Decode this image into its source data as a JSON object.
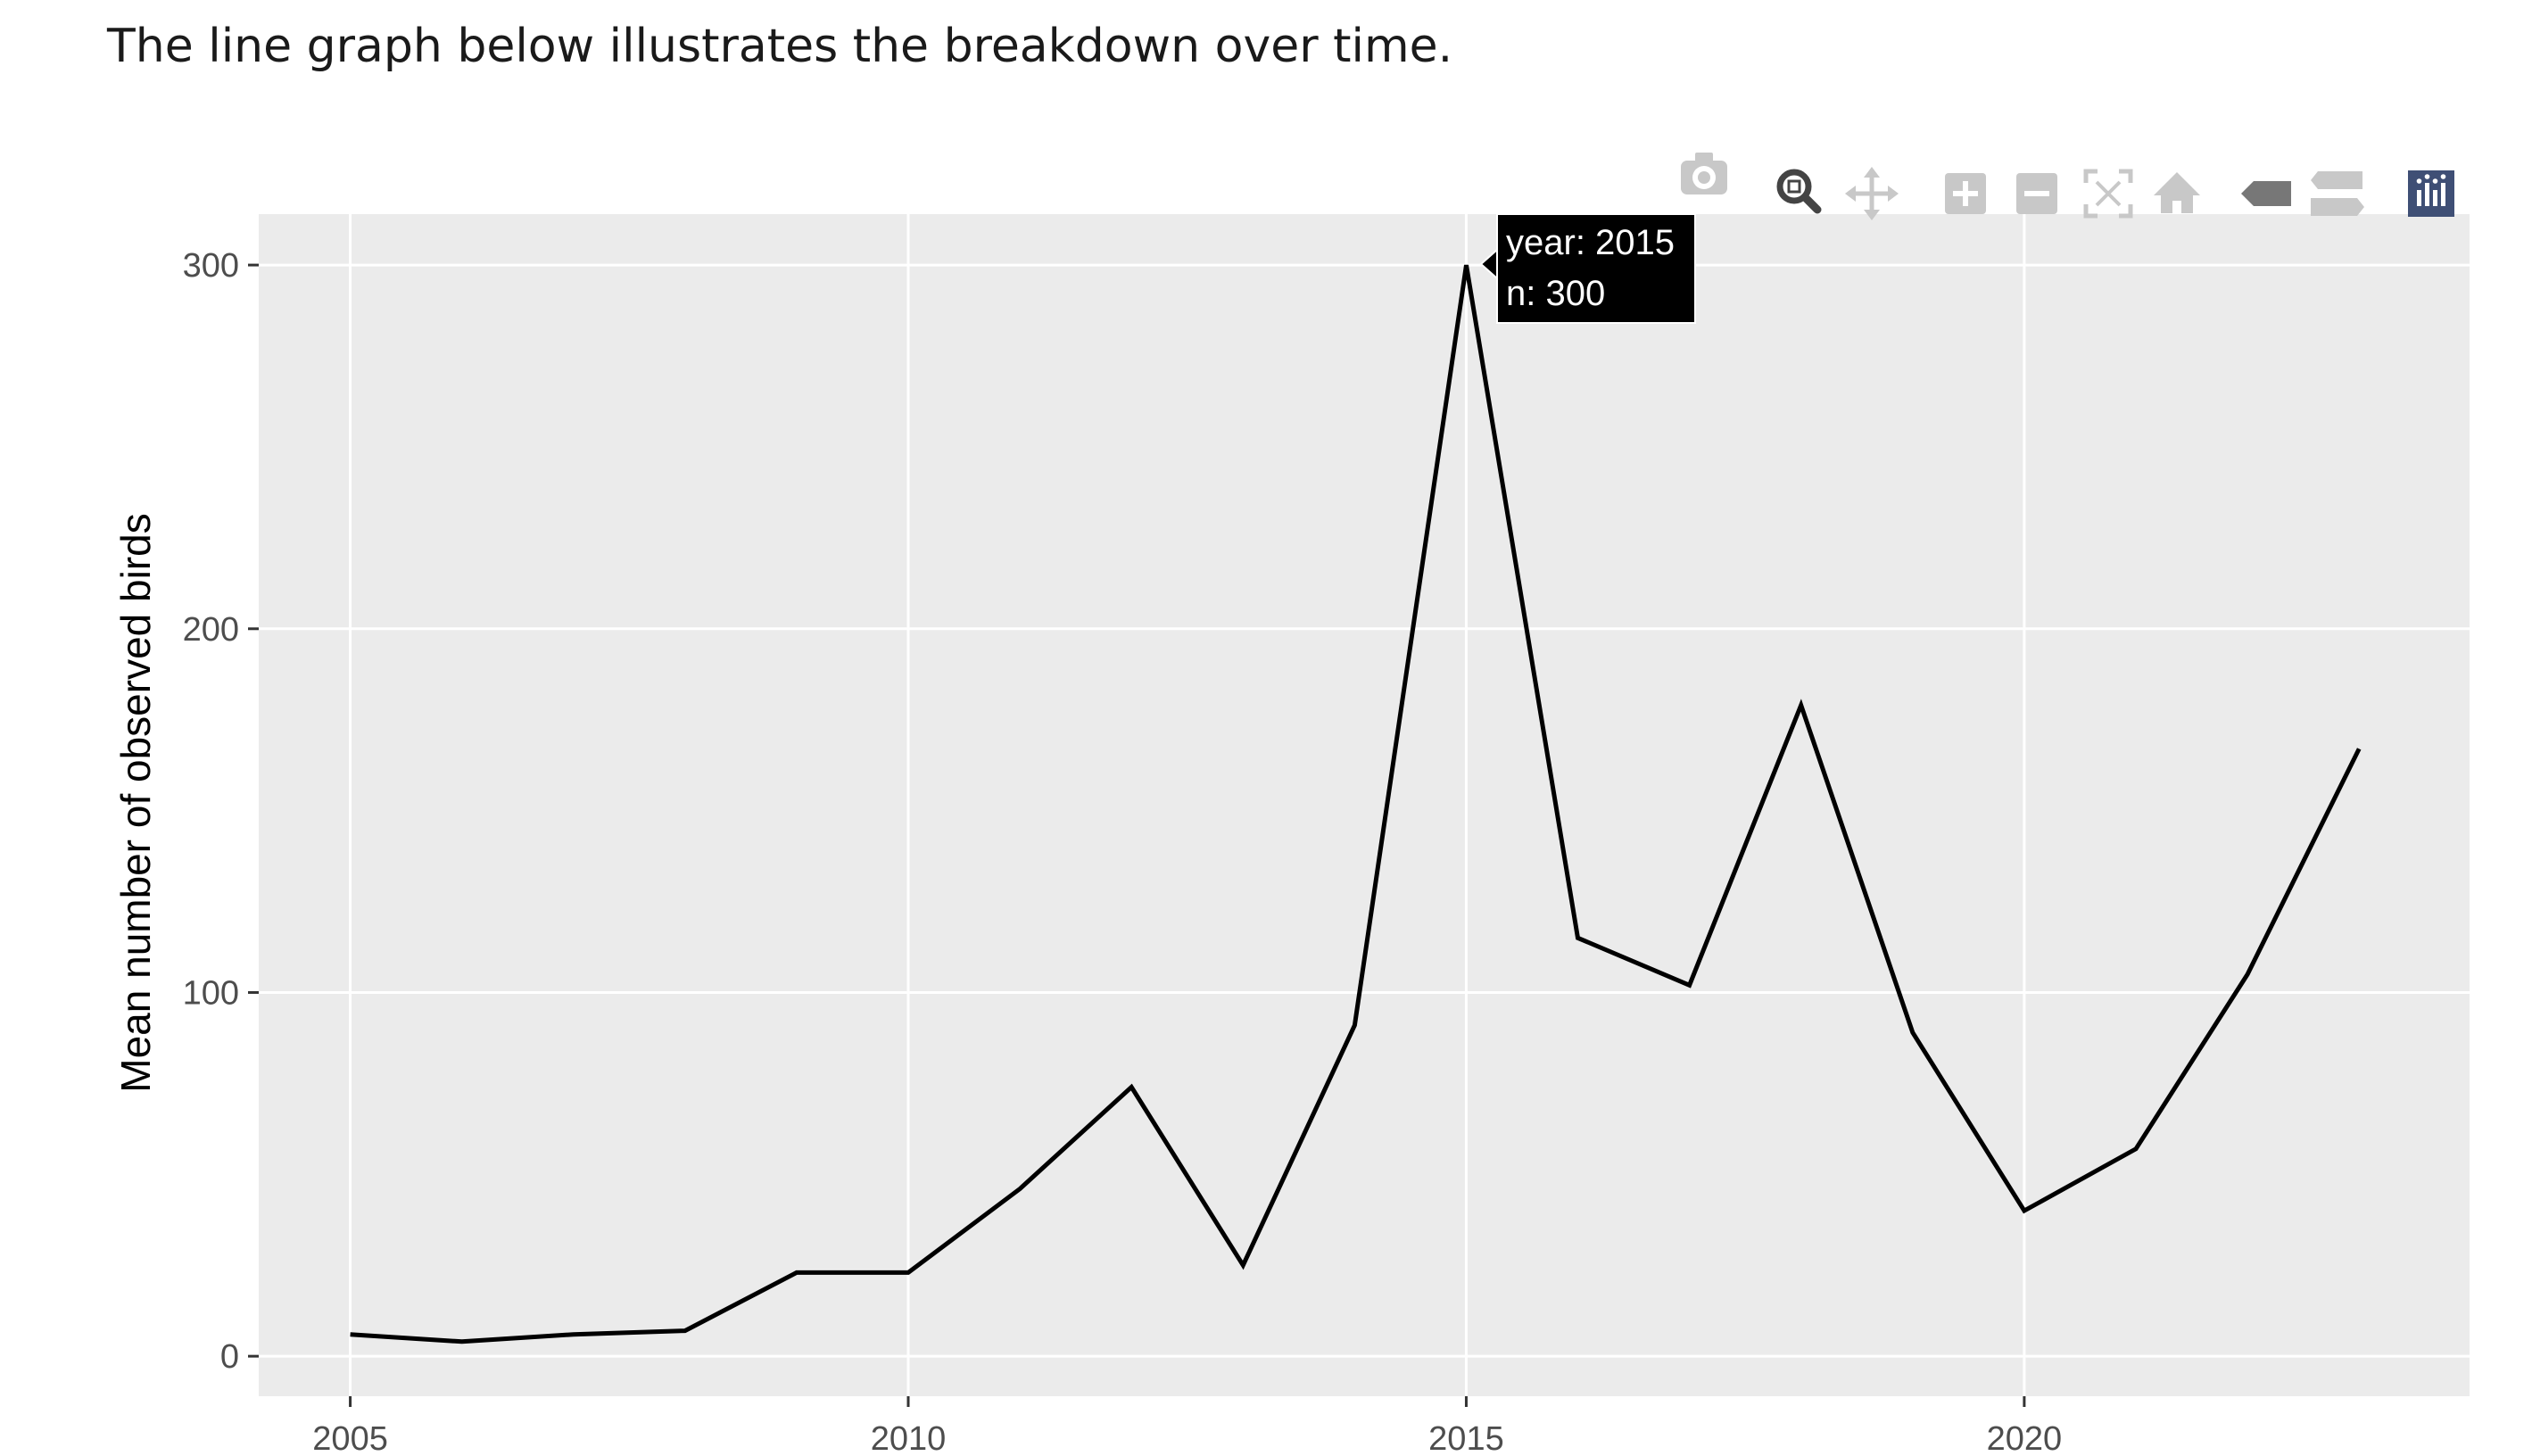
{
  "intro_text": "The line graph below illustrates the breakdown over time.",
  "tooltip": {
    "year_line": "year: 2015",
    "n_line": "n: 300",
    "year": 2015,
    "n": 300
  },
  "modebar": [
    {
      "icon": "camera-icon",
      "title": "Download plot as a png"
    },
    {
      "icon": "zoom-icon",
      "title": "Zoom"
    },
    {
      "icon": "pan-icon",
      "title": "Pan"
    },
    {
      "icon": "zoom-in-icon",
      "title": "Zoom in"
    },
    {
      "icon": "zoom-out-icon",
      "title": "Zoom out"
    },
    {
      "icon": "autoscale-icon",
      "title": "Autoscale"
    },
    {
      "icon": "home-icon",
      "title": "Reset axes"
    },
    {
      "icon": "hover-closest-icon",
      "title": "Show closest data on hover"
    },
    {
      "icon": "hover-compare-icon",
      "title": "Compare data on hover"
    },
    {
      "icon": "plotly-logo-icon",
      "title": "Produced with Plotly"
    }
  ],
  "colors": {
    "panel": "#ebebeb",
    "grid": "#ffffff",
    "line": "#000000",
    "tick_text": "#4d4d4d",
    "modebar_inactive": "#c8c8c8",
    "modebar_active": "#444444",
    "logo_bg": "#3f4f75"
  },
  "chart_data": {
    "type": "line",
    "title": "",
    "xlabel": "",
    "ylabel": "Mean number of observed birds",
    "xlim": [
      2004.18,
      2023.99
    ],
    "ylim": [
      -11,
      314
    ],
    "x_ticks": [
      2005,
      2010,
      2015,
      2020
    ],
    "x_tick_labels": [
      "2005",
      "2010",
      "2015",
      "2020"
    ],
    "y_ticks": [
      0,
      100,
      200,
      300
    ],
    "y_tick_labels": [
      "0",
      "100",
      "200",
      "300"
    ],
    "grid": true,
    "legend": "none",
    "series": [
      {
        "x": [
          2005,
          2006,
          2007,
          2008,
          2009,
          2010,
          2011,
          2012,
          2013,
          2014,
          2015,
          2016,
          2017,
          2018,
          2019,
          2020,
          2021,
          2022,
          2023
        ],
        "y": [
          6,
          4,
          6,
          7,
          23,
          23,
          46,
          74,
          25,
          91,
          300,
          115,
          102,
          179,
          89,
          40,
          57,
          105,
          167
        ],
        "color": "#000000"
      }
    ]
  }
}
